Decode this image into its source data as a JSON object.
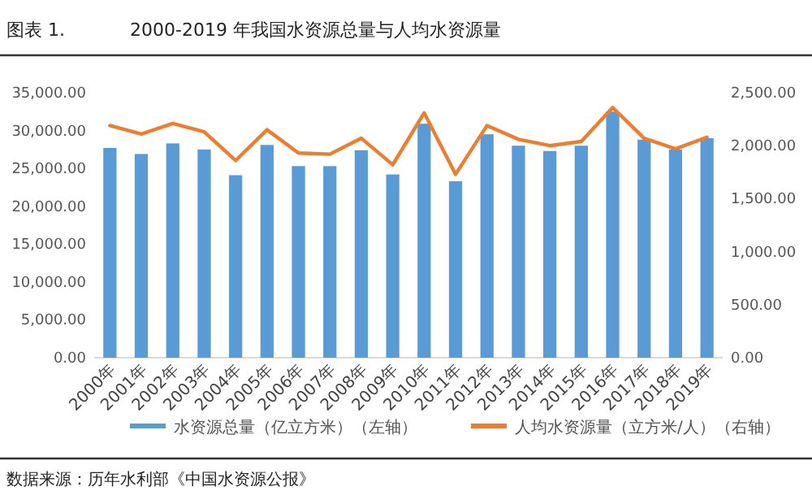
{
  "chart_data": {
    "type": "bar",
    "title": "2000-2019 年我国水资源总量与人均水资源量",
    "annotations": [
      "图表 1.",
      "数据来源：历年水利部《中国水资源公报》"
    ],
    "categories": [
      "2000年",
      "2001年",
      "2002年",
      "2003年",
      "2004年",
      "2005年",
      "2006年",
      "2007年",
      "2008年",
      "2009年",
      "2010年",
      "2011年",
      "2012年",
      "2013年",
      "2014年",
      "2015年",
      "2016年",
      "2017年",
      "2018年",
      "2019年"
    ],
    "series": [
      {
        "name": "水资源总量（亿立方米）（左轴）",
        "color": "#5b9bd5",
        "values": [
          27700,
          26900,
          28300,
          27500,
          24100,
          28100,
          25300,
          25300,
          27400,
          24200,
          30900,
          23300,
          29500,
          28000,
          27300,
          28000,
          32500,
          28800,
          27500,
          29000
        ]
      },
      {
        "name": "人均水资源量（立方米/人）（右轴）",
        "type": "line",
        "axis": "y2",
        "color": "#ed7d31",
        "values": [
          2190,
          2110,
          2210,
          2130,
          1860,
          2150,
          1930,
          1920,
          2070,
          1820,
          2310,
          1730,
          2190,
          2060,
          2000,
          2040,
          2360,
          2070,
          1970,
          2080
        ]
      }
    ],
    "ylim": [
      0,
      35000
    ],
    "yticks": [
      {
        "value": 0,
        "label": "0.00"
      },
      {
        "value": 5000,
        "label": "5,000.00"
      },
      {
        "value": 10000,
        "label": "10,000.00"
      },
      {
        "value": 15000,
        "label": "15,000.00"
      },
      {
        "value": 20000,
        "label": "20,000.00"
      },
      {
        "value": 25000,
        "label": "25,000.00"
      },
      {
        "value": 30000,
        "label": "30,000.00"
      },
      {
        "value": 35000,
        "label": "35,000.00"
      }
    ],
    "y2lim": [
      0,
      2500
    ],
    "y2ticks": [
      {
        "value": 0,
        "label": "0.00"
      },
      {
        "value": 500,
        "label": "500.00"
      },
      {
        "value": 1000,
        "label": "1,000.00"
      },
      {
        "value": 1500,
        "label": "1,500.00"
      },
      {
        "value": 2000,
        "label": "2,000.00"
      },
      {
        "value": 2500,
        "label": "2,500.00"
      }
    ],
    "legend": "bottom"
  }
}
